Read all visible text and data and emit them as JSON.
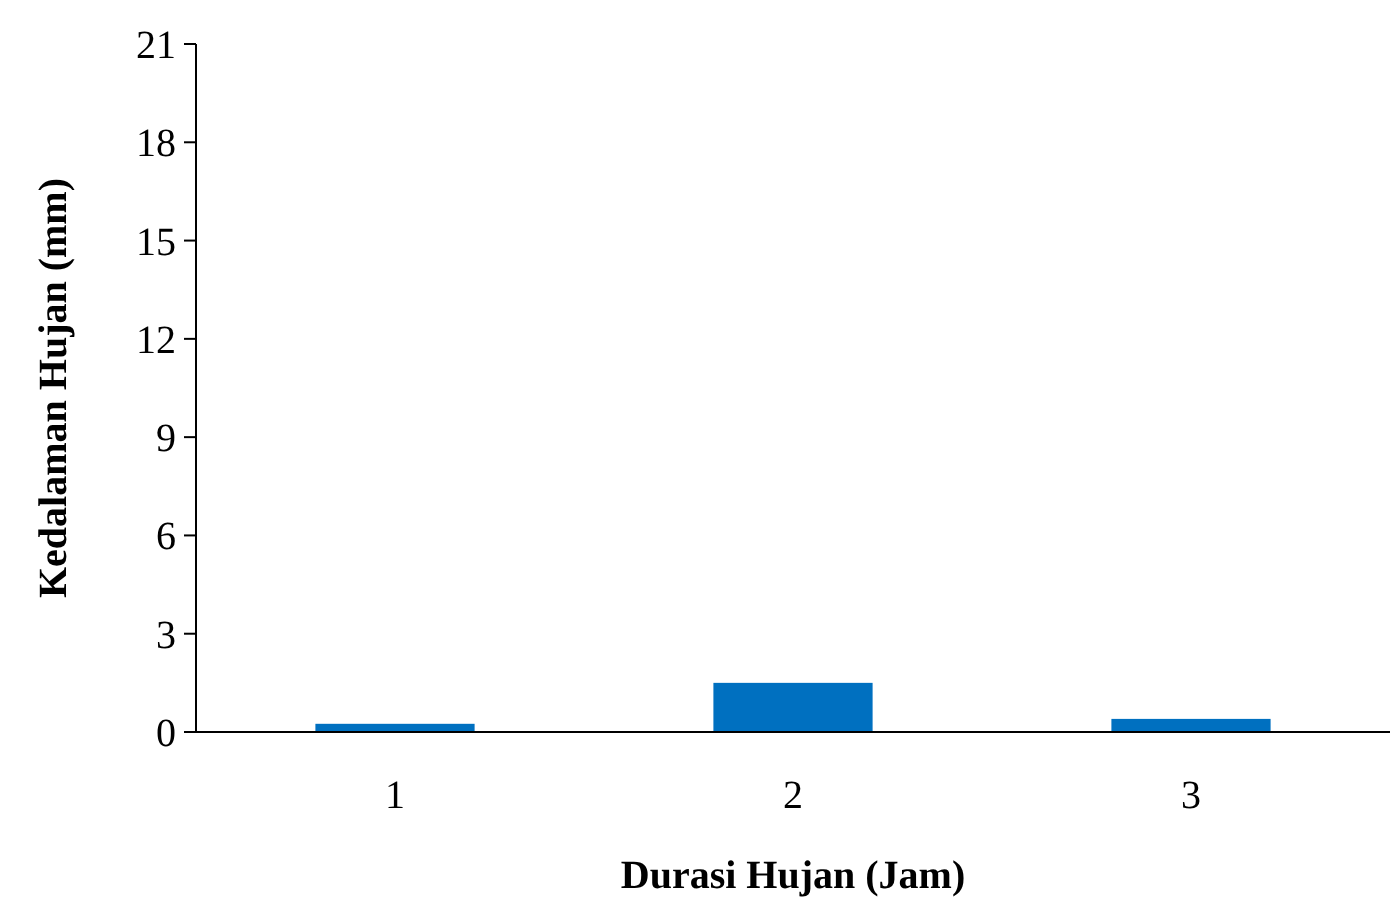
{
  "chart_data": {
    "type": "bar",
    "xlabel": "Durasi Hujan (Jam)",
    "ylabel": "Kedalaman Hujan (mm)",
    "categories": [
      "1",
      "2",
      "3"
    ],
    "values": [
      0.25,
      1.5,
      0.4
    ],
    "color": "#0070c0",
    "ylim": [
      0,
      21
    ],
    "yticks": [
      0,
      3,
      6,
      9,
      12,
      15,
      18,
      21
    ],
    "grid": false
  }
}
